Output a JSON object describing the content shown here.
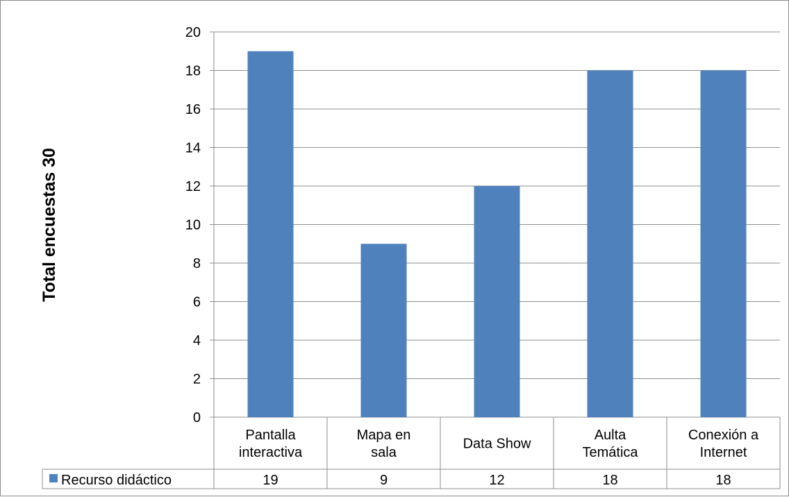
{
  "chart_data": {
    "type": "bar",
    "categories": [
      [
        "Pantalla",
        "interactiva"
      ],
      [
        "Mapa en",
        "sala"
      ],
      [
        "Data Show"
      ],
      [
        "Aulta",
        "Temática"
      ],
      [
        "Conexión a",
        "Internet"
      ]
    ],
    "series": [
      {
        "name": "Recurso didáctico",
        "values": [
          19,
          9,
          12,
          18,
          18
        ],
        "color": "#4F81BD"
      }
    ],
    "ylabel": "Total encuestas 30",
    "ylim": [
      0,
      20
    ],
    "yticks": [
      0,
      2,
      4,
      6,
      8,
      10,
      12,
      14,
      16,
      18,
      20
    ],
    "grid": true,
    "data_table": true,
    "legend": "data table left column"
  }
}
